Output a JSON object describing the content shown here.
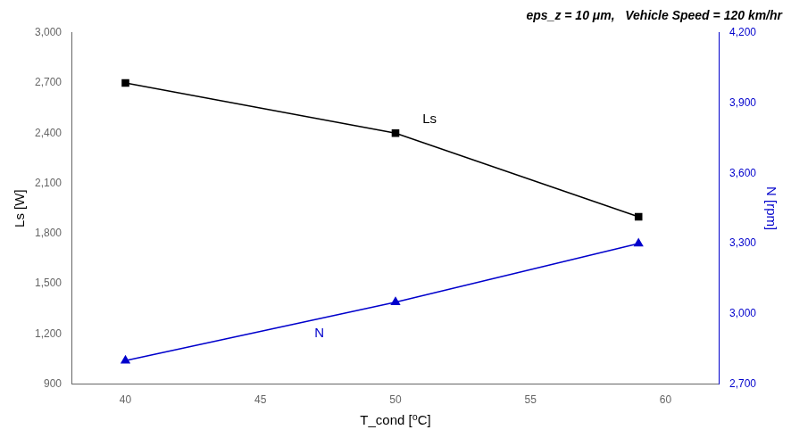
{
  "chart_data": {
    "type": "line",
    "subtitle": "eps_z = 10 μm,   Vehicle Speed = 120 km/hr",
    "xlabel": "T_cond [⁰C]",
    "ylabel": "Ls [W]",
    "y2label": "N [rpm]",
    "x": [
      40,
      50,
      59
    ],
    "xlim": [
      38,
      62
    ],
    "xticks": [
      40,
      45,
      50,
      55,
      60
    ],
    "ylim": [
      900,
      3000
    ],
    "yticks": [
      900,
      1200,
      1500,
      1800,
      2100,
      2400,
      2700,
      3000
    ],
    "y2lim": [
      2700,
      4200
    ],
    "y2ticks": [
      2700,
      3000,
      3300,
      3600,
      3900,
      4200
    ],
    "grid": false,
    "series": [
      {
        "name": "Ls",
        "color": "#000000",
        "marker": "square",
        "line_style": "solid",
        "values": [
          2700,
          2400,
          1900
        ]
      },
      {
        "name": "N",
        "color": "#0000cc",
        "marker": "triangle",
        "line_style": "solid",
        "axis": "y2",
        "values": [
          2800,
          3050,
          3300
        ]
      }
    ],
    "annotations": [
      {
        "text": "Ls",
        "x": 51,
        "y": 2460,
        "color": "#000000"
      },
      {
        "text": "N",
        "x": 47,
        "y": 2900,
        "axis": "y2",
        "color": "#0000cc"
      }
    ]
  }
}
